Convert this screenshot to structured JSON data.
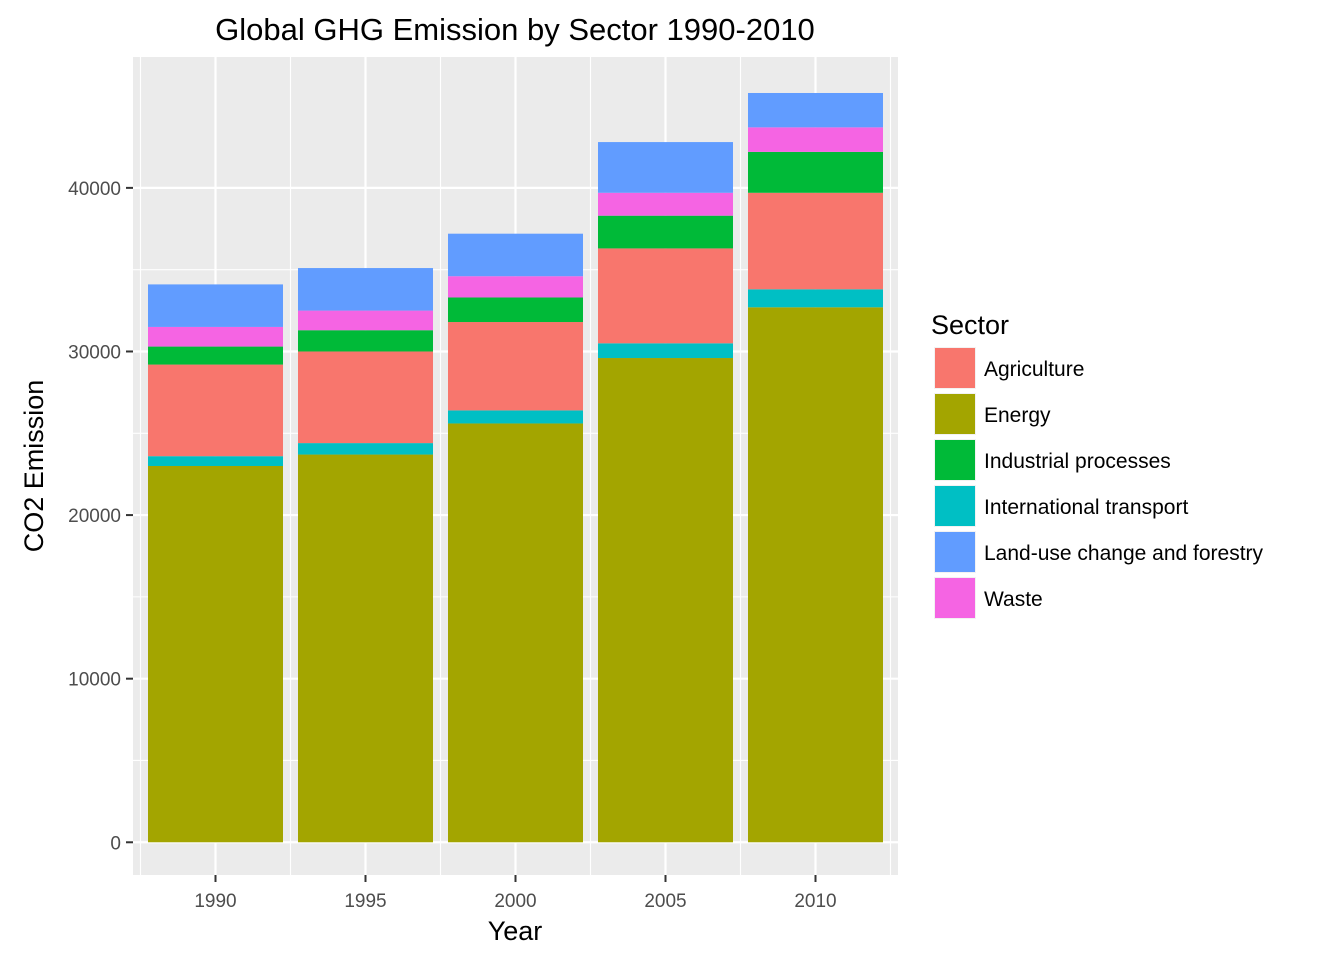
{
  "chart_data": {
    "type": "bar",
    "stacked": true,
    "title": "Global GHG Emission by Sector 1990-2010",
    "xlabel": "Year",
    "ylabel": "CO2 Emission",
    "categories": [
      "1990",
      "1995",
      "2000",
      "2005",
      "2010"
    ],
    "ylim": [
      -2000,
      48000
    ],
    "yticks": [
      0,
      10000,
      20000,
      30000,
      40000
    ],
    "grid": true,
    "legend": {
      "title": "Sector",
      "position": "right"
    },
    "stack_order_bottom_to_top": [
      "Energy",
      "International transport",
      "Agriculture",
      "Industrial processes",
      "Waste",
      "Land-use change and forestry"
    ],
    "series": [
      {
        "name": "Agriculture",
        "color": "#F8766D",
        "values": [
          5600,
          5600,
          5400,
          5800,
          5900
        ]
      },
      {
        "name": "Energy",
        "color": "#A3A500",
        "values": [
          23000,
          23700,
          25600,
          29600,
          32700
        ]
      },
      {
        "name": "Industrial processes",
        "color": "#00BA38",
        "values": [
          1100,
          1300,
          1500,
          2000,
          2500
        ]
      },
      {
        "name": "International transport",
        "color": "#00BFC4",
        "values": [
          600,
          700,
          800,
          900,
          1100
        ]
      },
      {
        "name": "Land-use change and forestry",
        "color": "#619CFF",
        "values": [
          2600,
          2600,
          2600,
          3100,
          2100
        ]
      },
      {
        "name": "Waste",
        "color": "#F564E3",
        "values": [
          1200,
          1200,
          1300,
          1400,
          1500
        ]
      }
    ]
  }
}
